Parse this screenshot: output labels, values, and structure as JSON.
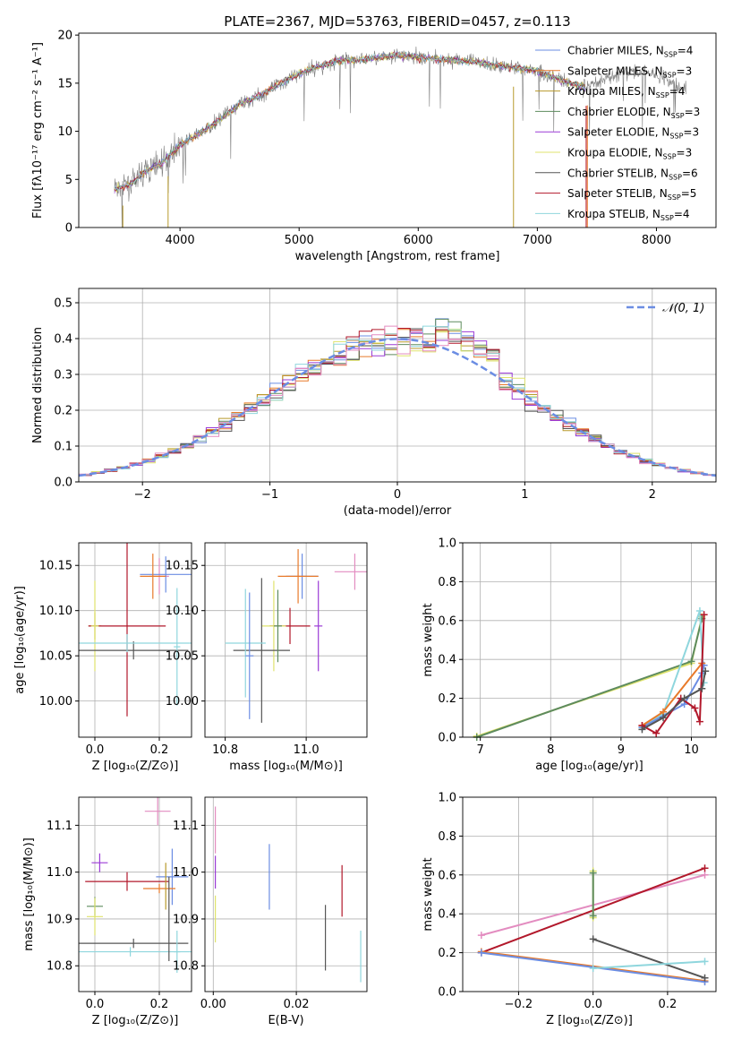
{
  "colors": {
    "grid": "#b0b0b0",
    "series": [
      "#6b8de3",
      "#e87a2a",
      "#b89a2c",
      "#5e8b5e",
      "#9b3bd6",
      "#dfe36c",
      "#555555",
      "#b2182b",
      "#8fd6dd",
      "#e38cc0",
      "#888888"
    ]
  },
  "chart_data": [
    {
      "type": "line",
      "title": "PLATE=2367, MJD=53763, FIBERID=0457, z=0.113",
      "xlabel": "wavelength [Angstrom, rest frame]",
      "ylabel": "Flux [fλ10⁻¹⁷ erg cm⁻² s⁻¹ A⁻¹]",
      "xlim": [
        3150,
        8500
      ],
      "ylim": [
        0,
        20.2
      ],
      "xticks": [
        4000,
        5000,
        6000,
        7000,
        8000
      ],
      "yticks": [
        0,
        5,
        10,
        15,
        20
      ],
      "legend_position": "right",
      "legend": [
        {
          "label": "Chabrier MILES, N_SSP=4",
          "color": "#6b8de3"
        },
        {
          "label": "Salpeter MILES, N_SSP=3",
          "color": "#e87a2a"
        },
        {
          "label": "Kroupa MILES, N_SSP=4",
          "color": "#b89a2c"
        },
        {
          "label": "Chabrier ELODIE, N_SSP=3",
          "color": "#5e8b5e"
        },
        {
          "label": "Salpeter ELODIE, N_SSP=3",
          "color": "#9b3bd6"
        },
        {
          "label": "Kroupa ELODIE, N_SSP=3",
          "color": "#dfe36c"
        },
        {
          "label": "Chabrier STELIB, N_SSP=6",
          "color": "#555555"
        },
        {
          "label": "Salpeter STELIB, N_SSP=5",
          "color": "#b2182b"
        },
        {
          "label": "Kroupa STELIB, N_SSP=4",
          "color": "#8fd6dd"
        }
      ],
      "continuum": {
        "wavelength": [
          3450,
          3600,
          3700,
          3850,
          4000,
          4100,
          4300,
          4500,
          4700,
          4900,
          5100,
          5300,
          5500,
          5800,
          6100,
          6400,
          6700,
          7000,
          7200,
          7400,
          7600,
          7800,
          8000,
          8250
        ],
        "flux": [
          4.0,
          4.6,
          5.8,
          6.7,
          8.6,
          9.3,
          10.9,
          12.8,
          13.9,
          15.4,
          16.5,
          17.3,
          17.4,
          17.9,
          17.6,
          17.3,
          16.8,
          16.3,
          15.3,
          14.6,
          15.6,
          16.2,
          16.0,
          14.2
        ]
      }
    },
    {
      "type": "histogram",
      "xlabel": "(data-model)/error",
      "ylabel": "Normed distribution",
      "xlim": [
        -2.5,
        2.5
      ],
      "ylim": [
        0,
        0.54
      ],
      "xticks": [
        -2,
        -1,
        0,
        1,
        2
      ],
      "yticks": [
        0.0,
        0.1,
        0.2,
        0.3,
        0.4,
        0.5
      ],
      "legend": [
        "𝒩(0, 1)"
      ],
      "grid": true
    },
    {
      "type": "scatter",
      "xlabel": "Z [log₁₀(Z/Z⊙)]",
      "ylabel": "age  [log₁₀(age/yr)]",
      "xlim": [
        -0.05,
        0.3
      ],
      "ylim": [
        9.96,
        10.175
      ],
      "xticks": [
        0.0,
        0.2
      ],
      "yticks": [
        10.0,
        10.05,
        10.1,
        10.15
      ],
      "points": [
        {
          "x": 0.2,
          "y": 10.138,
          "xerr": 0.03,
          "yerr": 0.02
        },
        {
          "x": 0.22,
          "y": 10.14,
          "xerr": 0.08,
          "yerr": 0.02
        },
        {
          "x": 0.18,
          "y": 10.138,
          "xerr": 0.04,
          "yerr": 0.025
        },
        {
          "x": 0.0,
          "y": 10.083,
          "xerr": 0.02,
          "yerr": 0.015
        },
        {
          "x": 0.1,
          "y": 10.083,
          "xerr": 0.12,
          "yerr": 0.1
        },
        {
          "x": 0.0,
          "y": 10.083,
          "xerr": 0.012,
          "yerr": 0.05
        },
        {
          "x": 0.12,
          "y": 10.056,
          "xerr": 0.17,
          "yerr": 0.01
        },
        {
          "x": 0.1,
          "y": 10.064,
          "xerr": 0.2,
          "yerr": 0.01
        },
        {
          "x": 0.255,
          "y": 10.06,
          "xerr": 0.01,
          "yerr": 0.065
        }
      ]
    },
    {
      "type": "scatter",
      "xlabel": "mass [log₁₀(M/M⊙)]",
      "ylabel": "",
      "xlim": [
        10.75,
        11.15
      ],
      "ylim": [
        9.96,
        10.175
      ],
      "xticks": [
        10.8,
        11.0
      ],
      "yticks": [
        10.0,
        10.05,
        10.1,
        10.15
      ]
    },
    {
      "type": "line",
      "xlabel": "age  [log₁₀(age/yr)]",
      "ylabel": "mass weight",
      "xlim": [
        6.75,
        10.35
      ],
      "ylim": [
        0,
        1
      ],
      "xticks": [
        7,
        8,
        9,
        10
      ],
      "yticks": [
        0.0,
        0.2,
        0.4,
        0.6,
        0.8,
        1.0
      ],
      "grid": true,
      "series": [
        {
          "color": "#dfe36c",
          "x": [
            6.95,
            10.0,
            10.15
          ],
          "y": [
            0.005,
            0.38,
            0.62
          ]
        },
        {
          "color": "#5e8b5e",
          "x": [
            6.95,
            10.0,
            10.15
          ],
          "y": [
            0.0,
            0.39,
            0.61
          ]
        },
        {
          "color": "#8fd6dd",
          "x": [
            9.3,
            9.6,
            10.12,
            10.18
          ],
          "y": [
            0.05,
            0.12,
            0.65,
            0.28
          ]
        },
        {
          "color": "#6b8de3",
          "x": [
            9.3,
            9.9,
            10.15,
            10.18
          ],
          "y": [
            0.05,
            0.17,
            0.33,
            0.37
          ]
        },
        {
          "color": "#e87a2a",
          "x": [
            9.3,
            9.6,
            10.15
          ],
          "y": [
            0.06,
            0.13,
            0.38
          ]
        },
        {
          "color": "#b2182b",
          "x": [
            9.3,
            9.5,
            9.85,
            10.05,
            10.12,
            10.18
          ],
          "y": [
            0.06,
            0.02,
            0.2,
            0.15,
            0.08,
            0.63
          ]
        },
        {
          "color": "#555555",
          "x": [
            9.3,
            9.6,
            9.9,
            10.15,
            10.2
          ],
          "y": [
            0.04,
            0.1,
            0.2,
            0.25,
            0.34
          ]
        }
      ]
    },
    {
      "type": "scatter",
      "xlabel": "Z [log₁₀(Z/Z⊙)]",
      "ylabel": "mass [log₁₀(M/M⊙)]",
      "xlim": [
        -0.05,
        0.3
      ],
      "ylim": [
        10.745,
        11.16
      ],
      "xticks": [
        0.0,
        0.2
      ],
      "yticks": [
        10.8,
        10.9,
        11.0,
        11.1
      ],
      "points": [
        {
          "x": 0.195,
          "y": 11.13,
          "xerr": 0.04,
          "yerr": 0.03
        },
        {
          "x": 0.015,
          "y": 11.02,
          "xerr": 0.025,
          "yerr": 0.02
        },
        {
          "x": 0.1,
          "y": 10.98,
          "xerr": 0.13,
          "yerr": 0.02
        },
        {
          "x": 0.24,
          "y": 10.99,
          "xerr": 0.05,
          "yerr": 0.06
        },
        {
          "x": 0.2,
          "y": 10.965,
          "xerr": 0.05,
          "yerr": 0.01
        },
        {
          "x": 0.0,
          "y": 10.927,
          "xerr": 0.025,
          "yerr": 0.02
        },
        {
          "x": 0.0,
          "y": 10.905,
          "xerr": 0.025,
          "yerr": 0.04
        },
        {
          "x": 0.12,
          "y": 10.848,
          "xerr": 0.17,
          "yerr": 0.01
        },
        {
          "x": 0.11,
          "y": 10.83,
          "xerr": 0.19,
          "yerr": 0.01
        },
        {
          "x": 0.255,
          "y": 10.83,
          "xerr": 0.01,
          "yerr": 0.045
        }
      ]
    },
    {
      "type": "scatter",
      "xlabel": "E(B-V)",
      "ylabel": "",
      "xlim": [
        -0.002,
        0.037
      ],
      "ylim": [
        10.745,
        11.16
      ],
      "xticks": [
        0.0,
        0.02
      ],
      "yticks": [
        10.8,
        10.9,
        11.0,
        11.1
      ],
      "points": [
        {
          "x": 0.0005,
          "y": 11.09,
          "yerr": 0.05,
          "color": "#e38cc0"
        },
        {
          "x": 0.0005,
          "y": 11.0,
          "yerr": 0.035,
          "color": "#9b3bd6"
        },
        {
          "x": 0.0005,
          "y": 10.9,
          "yerr": 0.05,
          "color": "#dfe36c"
        },
        {
          "x": 0.0135,
          "y": 10.99,
          "yerr": 0.07,
          "color": "#6b8de3"
        },
        {
          "x": 0.027,
          "y": 10.86,
          "yerr": 0.07,
          "color": "#555555"
        },
        {
          "x": 0.031,
          "y": 10.96,
          "yerr": 0.055,
          "color": "#b2182b"
        },
        {
          "x": 0.0355,
          "y": 10.82,
          "yerr": 0.055,
          "color": "#8fd6dd"
        }
      ]
    },
    {
      "type": "line",
      "xlabel": "Z [log₁₀(Z/Z⊙)]",
      "ylabel": "mass weight",
      "xlim": [
        -0.35,
        0.33
      ],
      "ylim": [
        0,
        1
      ],
      "xticks": [
        -0.2,
        0.0,
        0.2
      ],
      "yticks": [
        0.0,
        0.2,
        0.4,
        0.6,
        0.8,
        1.0
      ],
      "grid": true,
      "series": [
        {
          "color": "#e38cc0",
          "x": [
            -0.3,
            0.3
          ],
          "y": [
            0.29,
            0.6
          ]
        },
        {
          "color": "#b2182b",
          "x": [
            -0.3,
            0.3
          ],
          "y": [
            0.2,
            0.635
          ]
        },
        {
          "color": "#e87a2a",
          "x": [
            -0.3,
            0.3
          ],
          "y": [
            0.205,
            0.055
          ]
        },
        {
          "color": "#6b8de3",
          "x": [
            -0.3,
            0.3
          ],
          "y": [
            0.2,
            0.05
          ]
        },
        {
          "color": "#555555",
          "x": [
            0.0,
            0.3
          ],
          "y": [
            0.27,
            0.07
          ]
        },
        {
          "color": "#8fd6dd",
          "x": [
            0.0,
            0.3
          ],
          "y": [
            0.12,
            0.155
          ]
        },
        {
          "color": "#dfe36c",
          "x": [
            0.0,
            0.0
          ],
          "y": [
            0.38,
            0.62
          ]
        },
        {
          "color": "#5e8b5e",
          "x": [
            0.0,
            0.0
          ],
          "y": [
            0.39,
            0.61
          ]
        }
      ]
    }
  ]
}
